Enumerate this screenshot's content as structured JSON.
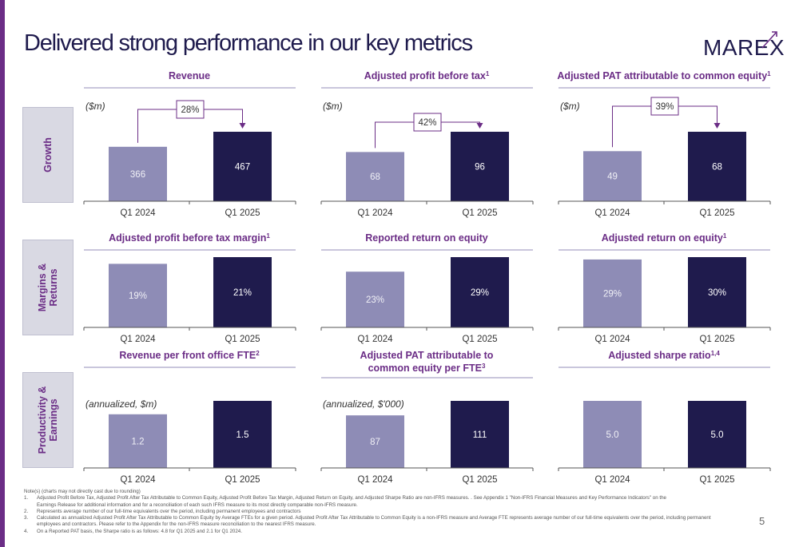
{
  "slide": {
    "title": "Delivered strong performance in our key metrics",
    "logo_text": "MAREX",
    "page_number": "5"
  },
  "rows": [
    {
      "label_lines": [
        "Growth"
      ]
    },
    {
      "label_lines": [
        "Margins &",
        "Returns"
      ]
    },
    {
      "label_lines": [
        "Productivity &",
        "Earnings"
      ]
    }
  ],
  "colors": {
    "accent": "#6b2d86",
    "bar_2024": "#8e8cb6",
    "bar_2025": "#1f1b4d",
    "title_text": "#1f1b4d"
  },
  "chart_data": [
    {
      "type": "bar",
      "title_lines": [
        "Revenue"
      ],
      "unit": "($m)",
      "categories": [
        "Q1 2024",
        "Q1 2025"
      ],
      "values": [
        366,
        467
      ],
      "labels": [
        "366",
        "467"
      ],
      "growth_label": "28%"
    },
    {
      "type": "bar",
      "title_lines": [
        "Adjusted profit before tax"
      ],
      "title_sup": "1",
      "unit": "($m)",
      "categories": [
        "Q1 2024",
        "Q1 2025"
      ],
      "values": [
        68,
        96
      ],
      "labels": [
        "68",
        "96"
      ],
      "growth_label": "42%"
    },
    {
      "type": "bar",
      "title_lines": [
        "Adjusted PAT attributable to common equity"
      ],
      "title_sup": "1",
      "unit": "($m)",
      "categories": [
        "Q1 2024",
        "Q1 2025"
      ],
      "values": [
        49,
        68
      ],
      "labels": [
        "49",
        "68"
      ],
      "growth_label": "39%"
    },
    {
      "type": "bar",
      "title_lines": [
        "Adjusted profit before tax margin"
      ],
      "title_sup": "1",
      "unit": "",
      "categories": [
        "Q1 2024",
        "Q1 2025"
      ],
      "values": [
        19,
        21
      ],
      "labels": [
        "19%",
        "21%"
      ]
    },
    {
      "type": "bar",
      "title_lines": [
        "Reported return on equity"
      ],
      "unit": "",
      "categories": [
        "Q1 2024",
        "Q1 2025"
      ],
      "values": [
        23,
        29
      ],
      "labels": [
        "23%",
        "29%"
      ]
    },
    {
      "type": "bar",
      "title_lines": [
        "Adjusted return on equity"
      ],
      "title_sup": "1",
      "unit": "",
      "categories": [
        "Q1 2024",
        "Q1 2025"
      ],
      "values": [
        29,
        30
      ],
      "labels": [
        "29%",
        "30%"
      ]
    },
    {
      "type": "bar",
      "title_lines": [
        "Revenue per front office FTE"
      ],
      "title_sup": "2",
      "unit": "(annualized, $m)",
      "categories": [
        "Q1 2024",
        "Q1 2025"
      ],
      "values": [
        1.2,
        1.5
      ],
      "labels": [
        "1.2",
        "1.5"
      ]
    },
    {
      "type": "bar",
      "title_lines": [
        "Adjusted PAT attributable to",
        "common equity per FTE"
      ],
      "title_sup": "3",
      "unit": "(annualized, $'000)",
      "categories": [
        "Q1 2024",
        "Q1 2025"
      ],
      "values": [
        87,
        111
      ],
      "labels": [
        "87",
        "111"
      ]
    },
    {
      "type": "bar",
      "title_lines": [
        "Adjusted sharpe ratio"
      ],
      "title_sup": "1,4",
      "unit": "",
      "categories": [
        "Q1 2024",
        "Q1 2025"
      ],
      "values": [
        5.0,
        5.0
      ],
      "labels": [
        "5.0",
        "5.0"
      ]
    }
  ],
  "notes": [
    {
      "num": "",
      "lines": [
        "Note(s) (charts may not directly cast due to rounding)"
      ]
    },
    {
      "num": "1.",
      "lines": [
        "Adjusted Profit Before Tax, Adjusted Profit After Tax Attributable to Common Equity, Adjusted Profit Before Tax Margin, Adjusted Return on Equity, and Adjusted Sharpe Ratio are non-IFRS measures. . See Appendix 1 \"Non-IFRS Financial Measures and Key Performance Indicators\" on the",
        "Earnings Release for additional information and for a reconciliation of each such IFRS measure to its most directly comparable non-IFRS measure."
      ]
    },
    {
      "num": "2.",
      "lines": [
        "Represents average number of our full-time equivalents over the period, including permanent employees and contractors"
      ]
    },
    {
      "num": "3.",
      "lines": [
        "Calculated as annualized Adjusted Profit After Tax Attributable to Common Equity by Average FTEs for a given period. Adjusted Profit After Tax Attributable to Common Equity is a non-IFRS measure and Average FTE represents average number of our full-time equivalents over the period, including permanent",
        "employees and contractors. Please refer to the Appendix for the non-IFRS measure reconciliation to the nearest IFRS measure."
      ]
    },
    {
      "num": "4.",
      "lines": [
        "On a Reported PAT basis, the Sharpe ratio is as follows: 4.8 for Q1 2025 and 2.1 for Q1 2024."
      ]
    }
  ]
}
